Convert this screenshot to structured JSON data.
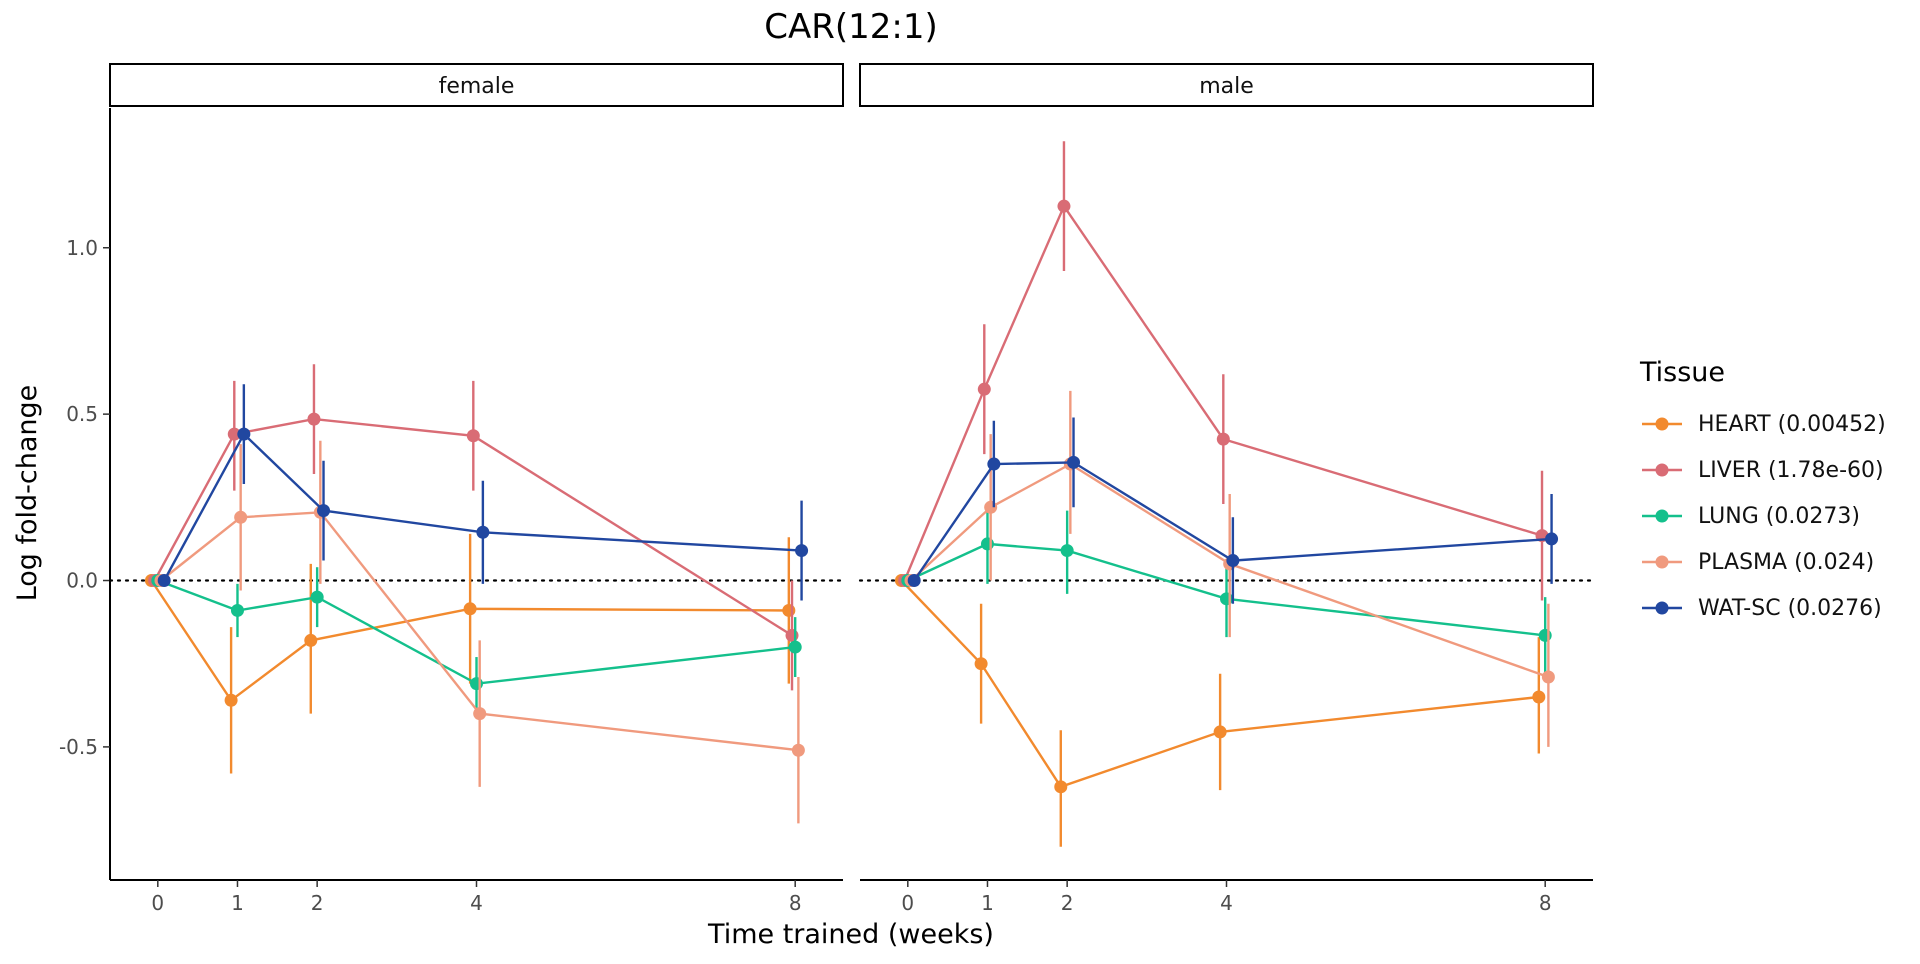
{
  "chart_data": {
    "type": "line",
    "title": "CAR(12:1)",
    "xlabel": "Time trained (weeks)",
    "ylabel": "Log fold-change",
    "x_ticks": [
      0,
      1,
      2,
      4,
      8
    ],
    "y_ticks": [
      -0.5,
      0.0,
      0.5,
      1.0
    ],
    "y_tick_labels": [
      "-0.5",
      "0.0",
      "0.5",
      "1.0"
    ],
    "ylim": [
      -0.9,
      1.42
    ],
    "xlim": [
      -0.6,
      8.6
    ],
    "reference_line": 0,
    "legend": {
      "title": "Tissue",
      "position": "right"
    },
    "panels": [
      {
        "label": "female",
        "series": [
          {
            "name": "HEART (0.00452)",
            "color": "#F28A2E",
            "points": [
              {
                "x": 0,
                "y": 0,
                "lo": 0,
                "hi": 0
              },
              {
                "x": 1,
                "y": -0.36,
                "lo": -0.58,
                "hi": -0.14
              },
              {
                "x": 2,
                "y": -0.18,
                "lo": -0.4,
                "hi": 0.05
              },
              {
                "x": 4,
                "y": -0.085,
                "lo": -0.31,
                "hi": 0.14
              },
              {
                "x": 8,
                "y": -0.09,
                "lo": -0.31,
                "hi": 0.13
              }
            ]
          },
          {
            "name": "LIVER (1.78e-60)",
            "color": "#D96C75",
            "points": [
              {
                "x": 0,
                "y": 0,
                "lo": 0,
                "hi": 0
              },
              {
                "x": 1,
                "y": 0.44,
                "lo": 0.27,
                "hi": 0.6
              },
              {
                "x": 2,
                "y": 0.485,
                "lo": 0.32,
                "hi": 0.65
              },
              {
                "x": 4,
                "y": 0.435,
                "lo": 0.27,
                "hi": 0.6
              },
              {
                "x": 8,
                "y": -0.165,
                "lo": -0.33,
                "hi": 0.0
              }
            ]
          },
          {
            "name": "LUNG (0.0273)",
            "color": "#14C08C",
            "points": [
              {
                "x": 0,
                "y": 0,
                "lo": 0,
                "hi": 0
              },
              {
                "x": 1,
                "y": -0.09,
                "lo": -0.17,
                "hi": -0.01
              },
              {
                "x": 2,
                "y": -0.05,
                "lo": -0.14,
                "hi": 0.04
              },
              {
                "x": 4,
                "y": -0.31,
                "lo": -0.39,
                "hi": -0.23
              },
              {
                "x": 8,
                "y": -0.2,
                "lo": -0.29,
                "hi": -0.11
              }
            ]
          },
          {
            "name": "PLASMA (0.024)",
            "color": "#F09A7E",
            "points": [
              {
                "x": 0,
                "y": 0,
                "lo": 0,
                "hi": 0
              },
              {
                "x": 1,
                "y": 0.19,
                "lo": -0.03,
                "hi": 0.41
              },
              {
                "x": 2,
                "y": 0.205,
                "lo": -0.01,
                "hi": 0.42
              },
              {
                "x": 4,
                "y": -0.4,
                "lo": -0.62,
                "hi": -0.18
              },
              {
                "x": 8,
                "y": -0.51,
                "lo": -0.73,
                "hi": -0.29
              }
            ]
          },
          {
            "name": "WAT-SC (0.0276)",
            "color": "#2147A0",
            "points": [
              {
                "x": 0,
                "y": 0,
                "lo": 0,
                "hi": 0
              },
              {
                "x": 1,
                "y": 0.44,
                "lo": 0.29,
                "hi": 0.59
              },
              {
                "x": 2,
                "y": 0.21,
                "lo": 0.06,
                "hi": 0.36
              },
              {
                "x": 4,
                "y": 0.145,
                "lo": -0.01,
                "hi": 0.3
              },
              {
                "x": 8,
                "y": 0.09,
                "lo": -0.06,
                "hi": 0.24
              }
            ]
          }
        ]
      },
      {
        "label": "male",
        "series": [
          {
            "name": "HEART (0.00452)",
            "color": "#F28A2E",
            "points": [
              {
                "x": 0,
                "y": 0,
                "lo": 0,
                "hi": 0
              },
              {
                "x": 1,
                "y": -0.25,
                "lo": -0.43,
                "hi": -0.07
              },
              {
                "x": 2,
                "y": -0.62,
                "lo": -0.8,
                "hi": -0.45
              },
              {
                "x": 4,
                "y": -0.455,
                "lo": -0.63,
                "hi": -0.28
              },
              {
                "x": 8,
                "y": -0.35,
                "lo": -0.52,
                "hi": -0.17
              }
            ]
          },
          {
            "name": "LIVER (1.78e-60)",
            "color": "#D96C75",
            "points": [
              {
                "x": 0,
                "y": 0,
                "lo": 0,
                "hi": 0
              },
              {
                "x": 1,
                "y": 0.575,
                "lo": 0.38,
                "hi": 0.77
              },
              {
                "x": 2,
                "y": 1.125,
                "lo": 0.93,
                "hi": 1.32
              },
              {
                "x": 4,
                "y": 0.425,
                "lo": 0.23,
                "hi": 0.62
              },
              {
                "x": 8,
                "y": 0.135,
                "lo": -0.06,
                "hi": 0.33
              }
            ]
          },
          {
            "name": "LUNG (0.0273)",
            "color": "#14C08C",
            "points": [
              {
                "x": 0,
                "y": 0,
                "lo": 0,
                "hi": 0
              },
              {
                "x": 1,
                "y": 0.11,
                "lo": -0.01,
                "hi": 0.23
              },
              {
                "x": 2,
                "y": 0.09,
                "lo": -0.04,
                "hi": 0.21
              },
              {
                "x": 4,
                "y": -0.055,
                "lo": -0.17,
                "hi": 0.06
              },
              {
                "x": 8,
                "y": -0.165,
                "lo": -0.28,
                "hi": -0.05
              }
            ]
          },
          {
            "name": "PLASMA (0.024)",
            "color": "#F09A7E",
            "points": [
              {
                "x": 0,
                "y": 0,
                "lo": 0,
                "hi": 0
              },
              {
                "x": 1,
                "y": 0.22,
                "lo": 0.0,
                "hi": 0.44
              },
              {
                "x": 2,
                "y": 0.35,
                "lo": 0.14,
                "hi": 0.57
              },
              {
                "x": 4,
                "y": 0.05,
                "lo": -0.17,
                "hi": 0.26
              },
              {
                "x": 8,
                "y": -0.29,
                "lo": -0.5,
                "hi": -0.07
              }
            ]
          },
          {
            "name": "WAT-SC (0.0276)",
            "color": "#2147A0",
            "points": [
              {
                "x": 0,
                "y": 0,
                "lo": 0,
                "hi": 0
              },
              {
                "x": 1,
                "y": 0.35,
                "lo": 0.22,
                "hi": 0.48
              },
              {
                "x": 2,
                "y": 0.355,
                "lo": 0.22,
                "hi": 0.49
              },
              {
                "x": 4,
                "y": 0.06,
                "lo": -0.07,
                "hi": 0.19
              },
              {
                "x": 8,
                "y": 0.125,
                "lo": -0.01,
                "hi": 0.26
              }
            ]
          }
        ]
      }
    ]
  }
}
